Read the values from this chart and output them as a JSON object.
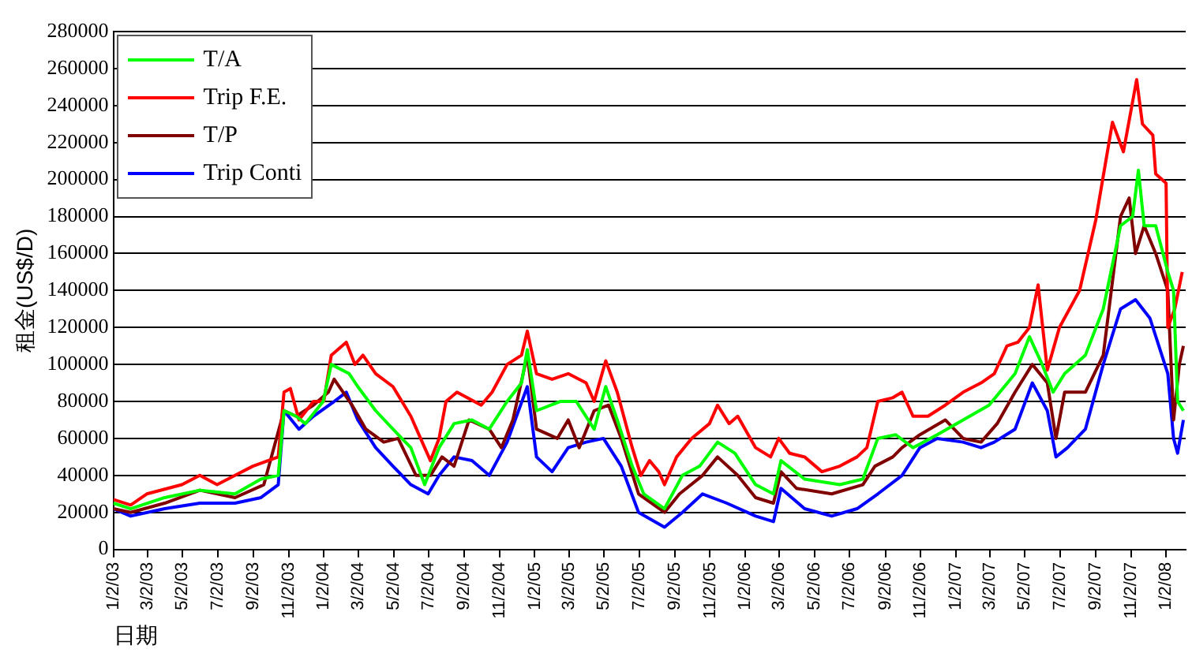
{
  "chart_data": {
    "type": "line",
    "ylabel": "租金(US$/D)",
    "xlabel": "日期",
    "legend": "top left",
    "grid": "y",
    "marker": "none",
    "line_style": "solid",
    "xlim": [
      "2003-01-02",
      "2008-02-05"
    ],
    "ylim": [
      0,
      280000
    ],
    "yticks": [
      0,
      20000,
      40000,
      60000,
      80000,
      100000,
      120000,
      140000,
      160000,
      180000,
      200000,
      220000,
      240000,
      260000,
      280000
    ],
    "xticks": [
      {
        "value": "2003-01-02",
        "label": "1/2/03"
      },
      {
        "value": "2003-03-02",
        "label": "3/2/03"
      },
      {
        "value": "2003-05-02",
        "label": "5/2/03"
      },
      {
        "value": "2003-07-02",
        "label": "7/2/03"
      },
      {
        "value": "2003-09-02",
        "label": "9/2/03"
      },
      {
        "value": "2003-11-02",
        "label": "11/2/03"
      },
      {
        "value": "2004-01-02",
        "label": "1/2/04"
      },
      {
        "value": "2004-03-02",
        "label": "3/2/04"
      },
      {
        "value": "2004-05-02",
        "label": "5/2/04"
      },
      {
        "value": "2004-07-02",
        "label": "7/2/04"
      },
      {
        "value": "2004-09-02",
        "label": "9/2/04"
      },
      {
        "value": "2004-11-02",
        "label": "11/2/04"
      },
      {
        "value": "2005-01-02",
        "label": "1/2/05"
      },
      {
        "value": "2005-03-02",
        "label": "3/2/05"
      },
      {
        "value": "2005-05-02",
        "label": "5/2/05"
      },
      {
        "value": "2005-07-02",
        "label": "7/2/05"
      },
      {
        "value": "2005-09-02",
        "label": "9/2/05"
      },
      {
        "value": "2005-11-02",
        "label": "11/2/05"
      },
      {
        "value": "2006-01-02",
        "label": "1/2/06"
      },
      {
        "value": "2006-03-02",
        "label": "3/2/06"
      },
      {
        "value": "2006-05-02",
        "label": "5/2/06"
      },
      {
        "value": "2006-07-02",
        "label": "7/2/06"
      },
      {
        "value": "2006-09-02",
        "label": "9/2/06"
      },
      {
        "value": "2006-11-02",
        "label": "11/2/06"
      },
      {
        "value": "2007-01-02",
        "label": "1/2/07"
      },
      {
        "value": "2007-03-02",
        "label": "3/2/07"
      },
      {
        "value": "2007-05-02",
        "label": "5/2/07"
      },
      {
        "value": "2007-07-02",
        "label": "7/2/07"
      },
      {
        "value": "2007-09-02",
        "label": "9/2/07"
      },
      {
        "value": "2007-11-02",
        "label": "11/2/07"
      },
      {
        "value": "2008-01-02",
        "label": "1/2/08"
      }
    ],
    "series": [
      {
        "name": "T/A",
        "color": "#00ff00",
        "x": [
          "2003-01-02",
          "2003-02-01",
          "2003-04-01",
          "2003-06-01",
          "2003-08-01",
          "2003-09-15",
          "2003-10-15",
          "2003-10-25",
          "2003-11-15",
          "2003-12-01",
          "2004-01-01",
          "2004-01-15",
          "2004-02-15",
          "2004-03-01",
          "2004-04-01",
          "2004-05-01",
          "2004-06-01",
          "2004-06-25",
          "2004-07-20",
          "2004-08-15",
          "2004-09-15",
          "2004-10-15",
          "2004-11-15",
          "2004-12-10",
          "2004-12-20",
          "2005-01-05",
          "2005-02-15",
          "2005-03-15",
          "2005-04-15",
          "2005-05-05",
          "2005-05-25",
          "2005-06-20",
          "2005-07-10",
          "2005-08-15",
          "2005-09-15",
          "2005-10-15",
          "2005-11-15",
          "2005-12-15",
          "2006-01-20",
          "2006-02-20",
          "2006-03-05",
          "2006-04-15",
          "2006-06-15",
          "2006-07-25",
          "2006-08-20",
          "2006-09-20",
          "2006-10-20",
          "2006-12-01",
          "2007-01-15",
          "2007-03-01",
          "2007-04-15",
          "2007-05-10",
          "2007-06-01",
          "2007-06-20",
          "2007-07-10",
          "2007-08-15",
          "2007-09-15",
          "2007-10-15",
          "2007-11-05",
          "2007-11-15",
          "2007-11-25",
          "2007-12-15",
          "2008-01-05",
          "2008-01-15",
          "2008-01-22",
          "2008-02-01"
        ],
        "values": [
          25000,
          22000,
          28000,
          32000,
          30000,
          38000,
          40000,
          75000,
          72000,
          68000,
          80000,
          100000,
          95000,
          88000,
          75000,
          65000,
          55000,
          35000,
          55000,
          68000,
          70000,
          65000,
          80000,
          90000,
          108000,
          75000,
          80000,
          80000,
          65000,
          88000,
          70000,
          45000,
          30000,
          22000,
          40000,
          45000,
          58000,
          52000,
          35000,
          30000,
          48000,
          38000,
          35000,
          38000,
          60000,
          62000,
          55000,
          62000,
          70000,
          78000,
          95000,
          115000,
          100000,
          85000,
          95000,
          105000,
          130000,
          175000,
          180000,
          205000,
          175000,
          175000,
          150000,
          140000,
          80000,
          75000
        ]
      },
      {
        "name": "Trip F.E.",
        "color": "#ff0000",
        "x": [
          "2003-01-02",
          "2003-02-01",
          "2003-03-01",
          "2003-05-01",
          "2003-06-01",
          "2003-07-01",
          "2003-08-01",
          "2003-09-01",
          "2003-10-15",
          "2003-10-25",
          "2003-11-05",
          "2003-11-20",
          "2003-12-15",
          "2004-01-02",
          "2004-01-15",
          "2004-02-10",
          "2004-02-25",
          "2004-03-10",
          "2004-04-01",
          "2004-05-01",
          "2004-06-01",
          "2004-06-25",
          "2004-07-05",
          "2004-07-20",
          "2004-08-01",
          "2004-08-20",
          "2004-10-01",
          "2004-10-20",
          "2004-11-15",
          "2004-12-10",
          "2004-12-20",
          "2005-01-05",
          "2005-02-01",
          "2005-03-01",
          "2005-04-01",
          "2005-04-15",
          "2005-05-05",
          "2005-05-25",
          "2005-06-20",
          "2005-07-05",
          "2005-07-20",
          "2005-08-05",
          "2005-08-15",
          "2005-09-05",
          "2005-10-01",
          "2005-11-01",
          "2005-11-15",
          "2005-12-05",
          "2005-12-20",
          "2006-01-20",
          "2006-02-15",
          "2006-03-01",
          "2006-03-20",
          "2006-04-15",
          "2006-05-15",
          "2006-06-15",
          "2006-07-15",
          "2006-08-01",
          "2006-08-20",
          "2006-09-15",
          "2006-10-01",
          "2006-10-20",
          "2006-11-15",
          "2006-12-15",
          "2007-01-15",
          "2007-02-15",
          "2007-03-10",
          "2007-04-01",
          "2007-04-20",
          "2007-05-10",
          "2007-05-25",
          "2007-06-10",
          "2007-07-01",
          "2007-08-05",
          "2007-09-02",
          "2007-10-01",
          "2007-10-20",
          "2007-11-12",
          "2007-11-22",
          "2007-12-10",
          "2007-12-15",
          "2008-01-02",
          "2008-01-05",
          "2008-01-17",
          "2008-01-30"
        ],
        "values": [
          27000,
          24000,
          30000,
          35000,
          40000,
          35000,
          40000,
          45000,
          50000,
          85000,
          87000,
          70000,
          80000,
          80000,
          105000,
          112000,
          100000,
          105000,
          95000,
          88000,
          72000,
          55000,
          48000,
          60000,
          80000,
          85000,
          78000,
          85000,
          100000,
          105000,
          118000,
          95000,
          92000,
          95000,
          90000,
          80000,
          102000,
          85000,
          55000,
          40000,
          48000,
          42000,
          35000,
          50000,
          60000,
          68000,
          78000,
          68000,
          72000,
          55000,
          50000,
          60000,
          52000,
          50000,
          42000,
          45000,
          50000,
          55000,
          80000,
          82000,
          85000,
          72000,
          72000,
          78000,
          85000,
          90000,
          95000,
          110000,
          112000,
          120000,
          143000,
          97000,
          120000,
          140000,
          178000,
          231000,
          215000,
          254000,
          230000,
          224000,
          203000,
          198000,
          120000,
          130000,
          150000
        ]
      },
      {
        "name": "T/P",
        "color": "#800000",
        "x": [
          "2003-01-02",
          "2003-02-01",
          "2003-04-01",
          "2003-06-01",
          "2003-08-01",
          "2003-09-20",
          "2003-10-25",
          "2003-11-15",
          "2003-12-15",
          "2004-01-10",
          "2004-01-20",
          "2004-02-20",
          "2004-03-15",
          "2004-04-15",
          "2004-05-10",
          "2004-06-10",
          "2004-07-05",
          "2004-07-25",
          "2004-08-15",
          "2004-09-10",
          "2004-10-15",
          "2004-11-05",
          "2004-11-25",
          "2004-12-20",
          "2005-01-05",
          "2005-02-10",
          "2005-03-01",
          "2005-03-20",
          "2005-04-15",
          "2005-05-10",
          "2005-06-01",
          "2005-07-01",
          "2005-08-15",
          "2005-09-10",
          "2005-10-20",
          "2005-11-15",
          "2005-12-20",
          "2006-01-20",
          "2006-02-20",
          "2006-03-05",
          "2006-04-01",
          "2006-06-01",
          "2006-07-25",
          "2006-08-15",
          "2006-09-15",
          "2006-10-01",
          "2006-11-01",
          "2006-12-15",
          "2007-01-15",
          "2007-02-15",
          "2007-03-15",
          "2007-04-15",
          "2007-05-15",
          "2007-06-10",
          "2007-06-25",
          "2007-07-10",
          "2007-08-15",
          "2007-09-15",
          "2007-10-15",
          "2007-10-30",
          "2007-11-10",
          "2007-11-25",
          "2007-12-15",
          "2008-01-05",
          "2008-01-15",
          "2008-01-25",
          "2008-02-01"
        ],
        "values": [
          22000,
          20000,
          25000,
          32000,
          28000,
          35000,
          75000,
          72000,
          78000,
          85000,
          92000,
          78000,
          65000,
          58000,
          60000,
          40000,
          40000,
          50000,
          45000,
          70000,
          65000,
          55000,
          70000,
          105000,
          65000,
          60000,
          70000,
          55000,
          75000,
          78000,
          60000,
          30000,
          20000,
          30000,
          40000,
          50000,
          40000,
          28000,
          25000,
          42000,
          33000,
          30000,
          35000,
          45000,
          50000,
          55000,
          62000,
          70000,
          60000,
          58000,
          68000,
          85000,
          100000,
          90000,
          60000,
          85000,
          85000,
          105000,
          180000,
          190000,
          160000,
          175000,
          160000,
          140000,
          70000,
          100000,
          110000
        ]
      },
      {
        "name": "Trip Conti",
        "color": "#0000ff",
        "x": [
          "2003-01-02",
          "2003-02-01",
          "2003-04-01",
          "2003-06-01",
          "2003-08-01",
          "2003-09-15",
          "2003-10-15",
          "2003-10-25",
          "2003-11-20",
          "2003-12-15",
          "2004-01-20",
          "2004-02-10",
          "2004-03-01",
          "2004-04-01",
          "2004-05-01",
          "2004-06-01",
          "2004-07-01",
          "2004-07-20",
          "2004-08-15",
          "2004-09-15",
          "2004-10-15",
          "2004-11-15",
          "2004-12-20",
          "2005-01-05",
          "2005-02-01",
          "2005-03-01",
          "2005-04-01",
          "2005-05-01",
          "2005-06-01",
          "2005-07-01",
          "2005-08-15",
          "2005-09-15",
          "2005-10-20",
          "2005-12-01",
          "2006-01-20",
          "2006-02-20",
          "2006-03-05",
          "2006-04-15",
          "2006-06-01",
          "2006-07-15",
          "2006-08-20",
          "2006-10-01",
          "2006-11-01",
          "2006-12-01",
          "2007-01-15",
          "2007-02-15",
          "2007-03-10",
          "2007-04-15",
          "2007-05-15",
          "2007-06-10",
          "2007-06-25",
          "2007-07-15",
          "2007-08-15",
          "2007-09-15",
          "2007-10-15",
          "2007-11-10",
          "2007-12-05",
          "2008-01-05",
          "2008-01-15",
          "2008-01-22",
          "2008-02-01"
        ],
        "values": [
          22000,
          18000,
          22000,
          25000,
          25000,
          28000,
          35000,
          75000,
          65000,
          72000,
          80000,
          85000,
          70000,
          55000,
          45000,
          35000,
          30000,
          40000,
          50000,
          48000,
          40000,
          58000,
          88000,
          50000,
          42000,
          55000,
          58000,
          60000,
          45000,
          20000,
          12000,
          20000,
          30000,
          25000,
          18000,
          15000,
          33000,
          22000,
          18000,
          22000,
          30000,
          40000,
          55000,
          60000,
          58000,
          55000,
          58000,
          65000,
          90000,
          75000,
          50000,
          55000,
          65000,
          100000,
          130000,
          135000,
          125000,
          95000,
          60000,
          52000,
          70000
        ]
      }
    ]
  }
}
